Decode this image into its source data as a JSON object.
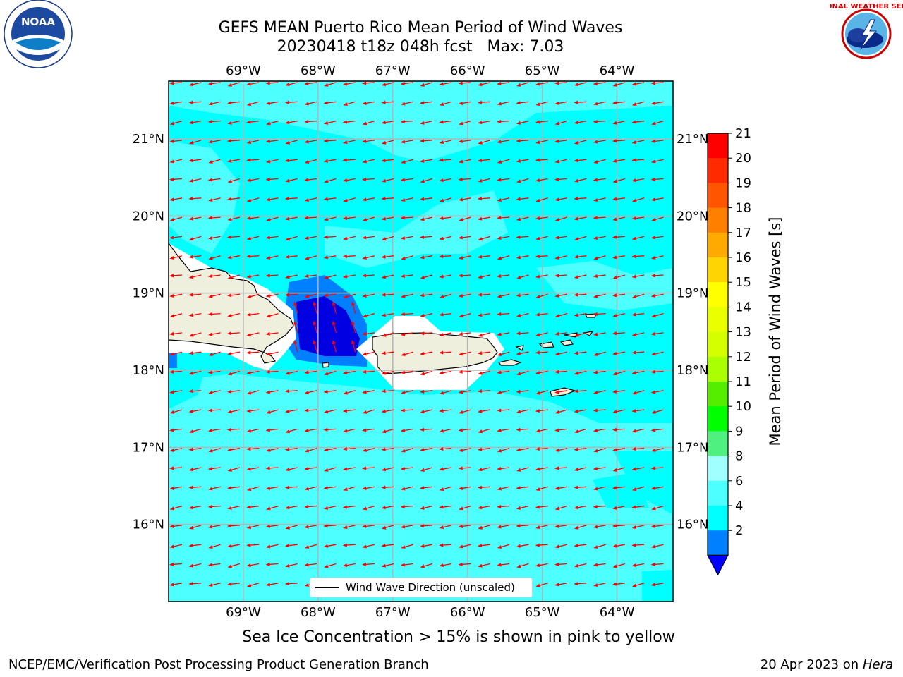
{
  "title_line1": "GEFS MEAN Puerto Rico Mean Period of Wind Waves",
  "title_line2": "20230418 t18z 048h fcst   Max: 7.03",
  "logos": {
    "left": "noaa-logo",
    "right": "nws-logo",
    "left_text": "NOAA",
    "right_text": "NATIONAL WEATHER SERVICE"
  },
  "map": {
    "lon_range": [
      -70.0,
      -63.25
    ],
    "lat_range": [
      15.0,
      21.75
    ],
    "lon_ticks": [
      "69°W",
      "68°W",
      "67°W",
      "66°W",
      "65°W",
      "64°W"
    ],
    "lat_ticks": [
      "21°N",
      "20°N",
      "19°N",
      "18°N",
      "17°N",
      "16°N"
    ],
    "grid": true,
    "land_color": "#efefde",
    "ocean_colors": {
      "cyan": "#00ffff",
      "lightcyan": "#4dffff",
      "blue": "#0080ff",
      "darkblue": "#0000e0"
    },
    "arrow_color": "#ff0000",
    "arrow_direction": "westward"
  },
  "legend": {
    "label": "Wind Wave Direction (unscaled)"
  },
  "colorbar": {
    "title": "Mean Period of Wind Waves [s]",
    "ticks": [
      "21",
      "20",
      "19",
      "18",
      "17",
      "16",
      "15",
      "14",
      "13",
      "12",
      "11",
      "10",
      "9",
      "8",
      "6",
      "4",
      "2"
    ],
    "colors": [
      "#ff0000",
      "#ff2a00",
      "#ff5500",
      "#ff8000",
      "#ffaa00",
      "#ffd500",
      "#ffff00",
      "#eaff00",
      "#d4ff00",
      "#aaff00",
      "#55ee00",
      "#00ff00",
      "#50f080",
      "#a0ffff",
      "#4dffff",
      "#00ffff",
      "#0080ff"
    ],
    "extend_color": "#0000ff"
  },
  "subnote": "Sea Ice Concentration > 15% is shown in pink to yellow",
  "footer_left": "NCEP/EMC/Verification Post Processing Product Generation Branch",
  "footer_right_date": "20 Apr 2023 on",
  "footer_right_host": "Hera"
}
